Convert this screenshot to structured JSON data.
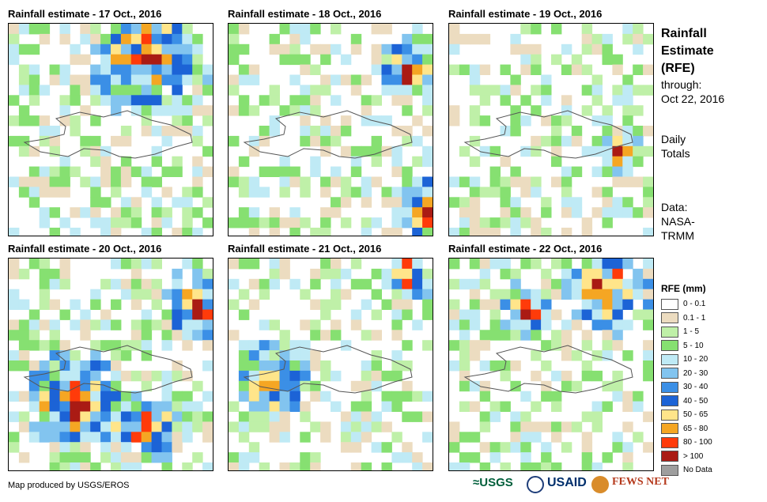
{
  "panels": [
    {
      "title": "Rainfall estimate - 17 Oct., 2016",
      "seed": 17
    },
    {
      "title": "Rainfall estimate - 18 Oct., 2016",
      "seed": 18
    },
    {
      "title": "Rainfall estimate - 19 Oct., 2016",
      "seed": 19
    },
    {
      "title": "Rainfall estimate - 20 Oct., 2016",
      "seed": 20
    },
    {
      "title": "Rainfall estimate - 21 Oct., 2016",
      "seed": 21
    },
    {
      "title": "Rainfall estimate - 22 Oct., 2016",
      "seed": 22
    }
  ],
  "side": {
    "title_line1": "Rainfall",
    "title_line2": "Estimate",
    "title_line3": "(RFE)",
    "through_label": "through:",
    "through_date": "Oct 22, 2016",
    "totals_line1": "Daily",
    "totals_line2": "Totals",
    "data_line1": "Data:",
    "data_line2": "NASA-",
    "data_line3": "TRMM"
  },
  "legend": {
    "title": "RFE (mm)",
    "items": [
      {
        "label": "0 - 0.1",
        "color": "#ffffff"
      },
      {
        "label": "0.1 - 1",
        "color": "#ecdcc0"
      },
      {
        "label": "1 - 5",
        "color": "#bff0a8"
      },
      {
        "label": "5 - 10",
        "color": "#86e071"
      },
      {
        "label": "10 - 20",
        "color": "#bfeaf5"
      },
      {
        "label": "20 - 30",
        "color": "#82c4ef"
      },
      {
        "label": "30 - 40",
        "color": "#3b8fe6"
      },
      {
        "label": "40 - 50",
        "color": "#1c63d6"
      },
      {
        "label": "50 - 65",
        "color": "#ffe58a"
      },
      {
        "label": "65 - 80",
        "color": "#f5a623"
      },
      {
        "label": "80 - 100",
        "color": "#ff3b0a"
      },
      {
        "label": "> 100",
        "color": "#aa1b14"
      },
      {
        "label": "No Data",
        "color": "#9e9e9e"
      }
    ]
  },
  "footer": {
    "credit": "Map produced by USGS/EROS",
    "logo_usgs": "USGS",
    "logo_usaid": "USAID",
    "logo_fews": "FEWS NET"
  }
}
